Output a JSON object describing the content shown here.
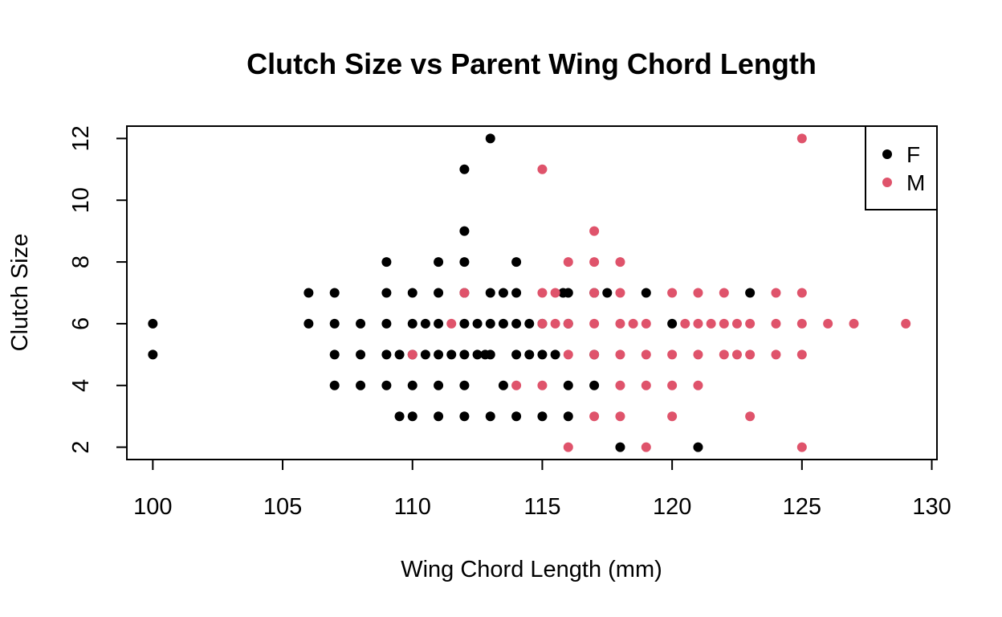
{
  "chart_data": {
    "type": "scatter",
    "title": "Clutch Size vs Parent Wing Chord Length",
    "xlabel": "Wing Chord Length (mm)",
    "ylabel": "Clutch Size",
    "xlim": [
      99,
      130.2
    ],
    "ylim": [
      1.6,
      12.4
    ],
    "x_ticks": [
      "100",
      "105",
      "110",
      "115",
      "120",
      "125",
      "130"
    ],
    "y_ticks": [
      "2",
      "4",
      "6",
      "8",
      "10",
      "12"
    ],
    "grid": false,
    "legend": "top-right",
    "series": [
      {
        "name": "F",
        "color": "#000000",
        "points": [
          [
            100,
            6
          ],
          [
            100,
            5
          ],
          [
            106,
            7
          ],
          [
            106,
            6
          ],
          [
            107,
            7
          ],
          [
            107,
            6
          ],
          [
            107,
            5
          ],
          [
            107,
            4
          ],
          [
            108,
            6
          ],
          [
            108,
            5
          ],
          [
            108,
            4
          ],
          [
            109,
            8
          ],
          [
            109,
            7
          ],
          [
            109,
            6
          ],
          [
            109,
            5
          ],
          [
            109,
            4
          ],
          [
            109.5,
            5
          ],
          [
            109.5,
            3
          ],
          [
            110,
            7
          ],
          [
            110,
            6
          ],
          [
            110,
            5
          ],
          [
            110,
            4
          ],
          [
            110,
            3
          ],
          [
            110.5,
            6
          ],
          [
            110.5,
            5
          ],
          [
            111,
            8
          ],
          [
            111,
            7
          ],
          [
            111,
            6
          ],
          [
            111,
            5
          ],
          [
            111,
            4
          ],
          [
            111,
            3
          ],
          [
            111.5,
            5
          ],
          [
            112,
            11
          ],
          [
            112,
            9
          ],
          [
            112,
            8
          ],
          [
            112,
            7
          ],
          [
            112,
            6
          ],
          [
            112,
            5
          ],
          [
            112,
            4
          ],
          [
            112,
            3
          ],
          [
            112.5,
            6
          ],
          [
            112.5,
            5
          ],
          [
            112.8,
            5
          ],
          [
            113,
            12
          ],
          [
            113,
            7
          ],
          [
            113,
            6
          ],
          [
            113,
            5
          ],
          [
            113,
            3
          ],
          [
            113.5,
            7
          ],
          [
            113.5,
            6
          ],
          [
            113.5,
            4
          ],
          [
            114,
            8
          ],
          [
            114,
            7
          ],
          [
            114,
            6
          ],
          [
            114,
            5
          ],
          [
            114,
            3
          ],
          [
            114.5,
            6
          ],
          [
            114.5,
            5
          ],
          [
            115,
            6
          ],
          [
            115,
            5
          ],
          [
            115,
            3
          ],
          [
            115.5,
            5
          ],
          [
            115.8,
            7
          ],
          [
            116,
            7
          ],
          [
            116,
            6
          ],
          [
            116,
            4
          ],
          [
            116,
            3
          ],
          [
            117,
            7
          ],
          [
            117,
            5
          ],
          [
            117,
            4
          ],
          [
            117.5,
            7
          ],
          [
            118,
            2
          ],
          [
            119,
            7
          ],
          [
            120,
            6
          ],
          [
            121,
            2
          ],
          [
            123,
            7
          ]
        ]
      },
      {
        "name": "M",
        "color": "#DF536B",
        "points": [
          [
            110,
            5
          ],
          [
            111.5,
            6
          ],
          [
            112,
            7
          ],
          [
            114,
            4
          ],
          [
            115,
            11
          ],
          [
            115,
            7
          ],
          [
            115,
            6
          ],
          [
            115,
            4
          ],
          [
            115.5,
            7
          ],
          [
            115.5,
            6
          ],
          [
            116,
            8
          ],
          [
            116,
            6
          ],
          [
            116,
            5
          ],
          [
            116,
            2
          ],
          [
            117,
            9
          ],
          [
            117,
            8
          ],
          [
            117,
            7
          ],
          [
            117,
            6
          ],
          [
            117,
            5
          ],
          [
            117,
            3
          ],
          [
            118,
            8
          ],
          [
            118,
            7
          ],
          [
            118,
            6
          ],
          [
            118,
            5
          ],
          [
            118,
            4
          ],
          [
            118,
            3
          ],
          [
            118.5,
            6
          ],
          [
            119,
            6
          ],
          [
            119,
            5
          ],
          [
            119,
            4
          ],
          [
            119,
            2
          ],
          [
            120,
            7
          ],
          [
            120,
            5
          ],
          [
            120,
            4
          ],
          [
            120,
            3
          ],
          [
            120.5,
            6
          ],
          [
            121,
            7
          ],
          [
            121,
            6
          ],
          [
            121,
            5
          ],
          [
            121,
            4
          ],
          [
            121.5,
            6
          ],
          [
            122,
            7
          ],
          [
            122,
            6
          ],
          [
            122,
            5
          ],
          [
            122.5,
            6
          ],
          [
            122.5,
            5
          ],
          [
            123,
            6
          ],
          [
            123,
            5
          ],
          [
            123,
            3
          ],
          [
            124,
            7
          ],
          [
            124,
            6
          ],
          [
            124,
            5
          ],
          [
            125,
            12
          ],
          [
            125,
            7
          ],
          [
            125,
            6
          ],
          [
            125,
            5
          ],
          [
            125,
            2
          ],
          [
            126,
            6
          ],
          [
            127,
            6
          ],
          [
            129,
            6
          ]
        ]
      }
    ]
  }
}
